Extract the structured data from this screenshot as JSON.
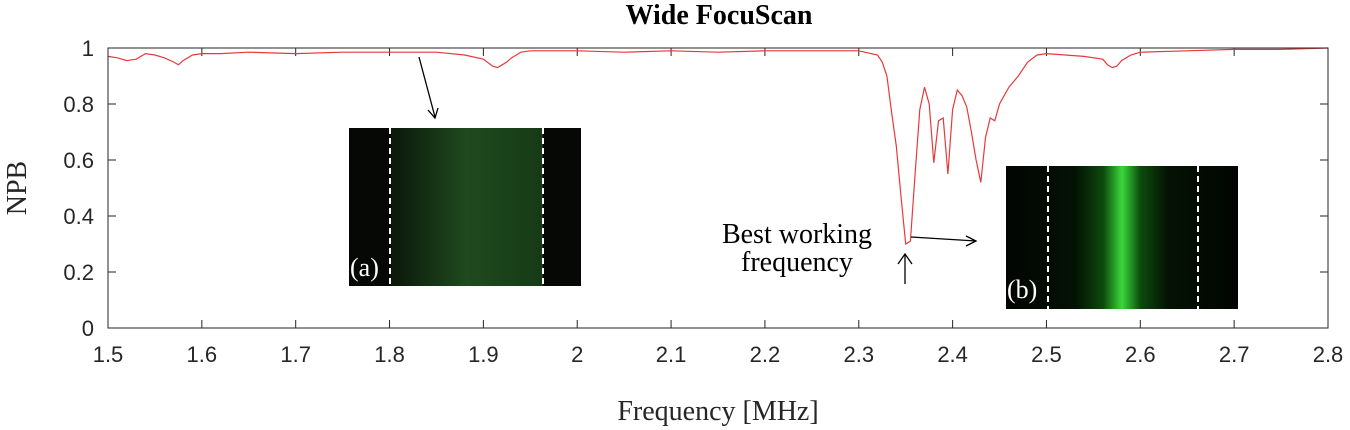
{
  "chart_data": {
    "type": "line",
    "title": "Wide FocuScan",
    "xlabel": "Frequency [MHz]",
    "ylabel": "NPB",
    "xlim": [
      1.5,
      2.8
    ],
    "ylim": [
      0,
      1
    ],
    "xticks": [
      "1.5",
      "1.6",
      "1.7",
      "1.8",
      "1.9",
      "2",
      "2.1",
      "2.2",
      "2.3",
      "2.4",
      "2.5",
      "2.6",
      "2.7",
      "2.8"
    ],
    "yticks": [
      "0",
      "0.2",
      "0.4",
      "0.6",
      "0.8",
      "1"
    ],
    "grid": false,
    "line_color": "#e8393a",
    "series": [
      {
        "x": [
          1.5,
          1.51,
          1.52,
          1.53,
          1.54,
          1.55,
          1.56,
          1.57,
          1.575,
          1.58,
          1.59,
          1.6,
          1.62,
          1.65,
          1.7,
          1.75,
          1.8,
          1.85,
          1.88,
          1.9,
          1.91,
          1.915,
          1.92,
          1.925,
          1.93,
          1.94,
          1.95,
          2.0,
          2.05,
          2.1,
          2.15,
          2.2,
          2.25,
          2.3,
          2.32,
          2.325,
          2.33,
          2.335,
          2.34,
          2.345,
          2.35,
          2.355,
          2.36,
          2.365,
          2.37,
          2.375,
          2.38,
          2.385,
          2.39,
          2.395,
          2.4,
          2.405,
          2.41,
          2.415,
          2.42,
          2.425,
          2.43,
          2.435,
          2.44,
          2.445,
          2.45,
          2.46,
          2.47,
          2.48,
          2.49,
          2.5,
          2.52,
          2.54,
          2.56,
          2.565,
          2.57,
          2.575,
          2.58,
          2.59,
          2.6,
          2.65,
          2.7,
          2.75,
          2.8
        ],
        "y": [
          0.97,
          0.965,
          0.955,
          0.96,
          0.98,
          0.975,
          0.965,
          0.95,
          0.94,
          0.955,
          0.975,
          0.98,
          0.98,
          0.985,
          0.98,
          0.985,
          0.985,
          0.985,
          0.975,
          0.96,
          0.935,
          0.93,
          0.94,
          0.95,
          0.965,
          0.985,
          0.99,
          0.99,
          0.985,
          0.99,
          0.985,
          0.99,
          0.99,
          0.99,
          0.975,
          0.95,
          0.9,
          0.77,
          0.65,
          0.47,
          0.3,
          0.31,
          0.55,
          0.78,
          0.86,
          0.8,
          0.59,
          0.74,
          0.75,
          0.55,
          0.78,
          0.85,
          0.83,
          0.79,
          0.7,
          0.6,
          0.52,
          0.68,
          0.75,
          0.74,
          0.8,
          0.86,
          0.9,
          0.95,
          0.975,
          0.98,
          0.975,
          0.97,
          0.96,
          0.94,
          0.93,
          0.935,
          0.955,
          0.975,
          0.985,
          0.99,
          0.995,
          0.995,
          1.0
        ]
      }
    ],
    "annotations": [
      {
        "text_lines": [
          "Best working",
          "frequency"
        ],
        "x": 2.35,
        "y": 0.3
      }
    ],
    "insets": [
      {
        "label": "(a)",
        "points_to": {
          "x": 1.85,
          "y": 0.98
        }
      },
      {
        "label": "(b)",
        "points_to": {
          "x": 2.35,
          "y": 0.3
        }
      }
    ]
  }
}
